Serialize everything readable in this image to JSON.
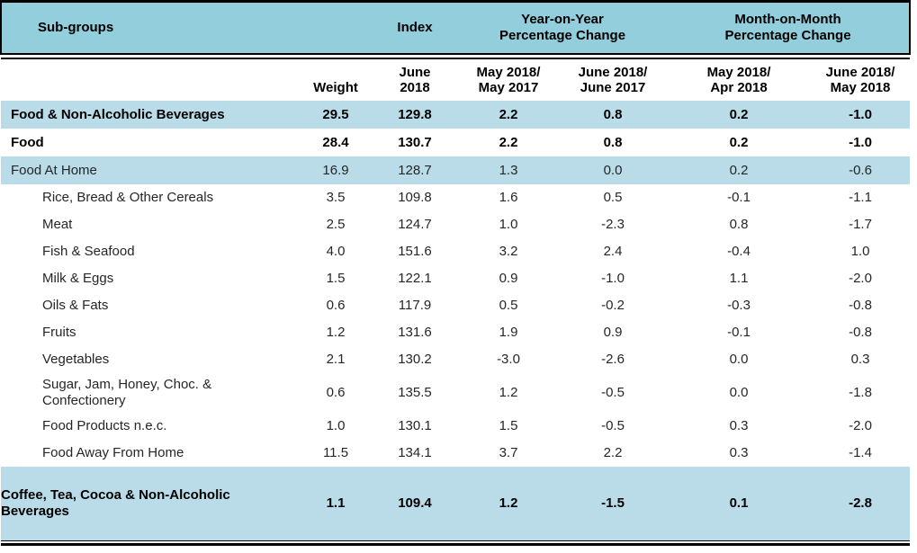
{
  "table": {
    "header": {
      "subgroups": "Sub-groups",
      "index": "Index",
      "yoy_group": "Year-on-Year\nPercentage Change",
      "mom_group": "Month-on-Month\nPercentage Change",
      "weight": "Weight",
      "index_period": "June\n2018",
      "yoy_col1": "May 2018/\nMay 2017",
      "yoy_col2": "June 2018/\nJune 2017",
      "mom_col1": "May 2018/\nApr 2018",
      "mom_col2": "June 2018/\nMay 2018"
    },
    "colors": {
      "header_band": "#92CEDC",
      "row_highlight": "#B9DCE8",
      "rule": "#000000"
    },
    "rows": [
      {
        "label": "Food & Non-Alcoholic Beverages",
        "weight": "29.5",
        "index": "129.8",
        "yoy1": "2.2",
        "yoy2": "0.8",
        "mom1": "0.2",
        "mom2": "-1.0",
        "level": 0,
        "bold": true,
        "highlight": true
      },
      {
        "label": "Food",
        "weight": "28.4",
        "index": "130.7",
        "yoy1": "2.2",
        "yoy2": "0.8",
        "mom1": "0.2",
        "mom2": "-1.0",
        "level": 0,
        "bold": true,
        "highlight": false
      },
      {
        "label": "Food At Home",
        "weight": "16.9",
        "index": "128.7",
        "yoy1": "1.3",
        "yoy2": "0.0",
        "mom1": "0.2",
        "mom2": "-0.6",
        "level": 0,
        "bold": false,
        "highlight": true
      },
      {
        "label": "Rice, Bread & Other Cereals",
        "weight": "3.5",
        "index": "109.8",
        "yoy1": "1.6",
        "yoy2": "0.5",
        "mom1": "-0.1",
        "mom2": "-1.1",
        "level": 1,
        "bold": false,
        "highlight": false
      },
      {
        "label": "Meat",
        "weight": "2.5",
        "index": "124.7",
        "yoy1": "1.0",
        "yoy2": "-2.3",
        "mom1": "0.8",
        "mom2": "-1.7",
        "level": 1,
        "bold": false,
        "highlight": false
      },
      {
        "label": "Fish & Seafood",
        "weight": "4.0",
        "index": "151.6",
        "yoy1": "3.2",
        "yoy2": "2.4",
        "mom1": "-0.4",
        "mom2": "1.0",
        "level": 1,
        "bold": false,
        "highlight": false
      },
      {
        "label": "Milk & Eggs",
        "weight": "1.5",
        "index": "122.1",
        "yoy1": "0.9",
        "yoy2": "-1.0",
        "mom1": "1.1",
        "mom2": "-2.0",
        "level": 1,
        "bold": false,
        "highlight": false
      },
      {
        "label": "Oils & Fats",
        "weight": "0.6",
        "index": "117.9",
        "yoy1": "0.5",
        "yoy2": "-0.2",
        "mom1": "-0.3",
        "mom2": "-0.8",
        "level": 1,
        "bold": false,
        "highlight": false
      },
      {
        "label": "Fruits",
        "weight": "1.2",
        "index": "131.6",
        "yoy1": "1.9",
        "yoy2": "0.9",
        "mom1": "-0.1",
        "mom2": "-0.8",
        "level": 1,
        "bold": false,
        "highlight": false
      },
      {
        "label": "Vegetables",
        "weight": "2.1",
        "index": "130.2",
        "yoy1": "-3.0",
        "yoy2": "-2.6",
        "mom1": "0.0",
        "mom2": "0.3",
        "level": 1,
        "bold": false,
        "highlight": false
      },
      {
        "label": "Sugar, Jam, Honey, Choc. &\nConfectionery",
        "weight": "0.6",
        "index": "135.5",
        "yoy1": "1.2",
        "yoy2": "-0.5",
        "mom1": "0.0",
        "mom2": "-1.8",
        "level": 1,
        "bold": false,
        "highlight": false
      },
      {
        "label": "Food Products n.e.c.",
        "weight": "1.0",
        "index": "130.1",
        "yoy1": "1.5",
        "yoy2": "-0.5",
        "mom1": "0.3",
        "mom2": "-2.0",
        "level": 1,
        "bold": false,
        "highlight": false
      },
      {
        "label": "Food Away From Home",
        "weight": "11.5",
        "index": "134.1",
        "yoy1": "3.7",
        "yoy2": "2.2",
        "mom1": "0.3",
        "mom2": "-1.4",
        "level": 1,
        "bold": false,
        "highlight": false
      },
      {
        "label": "Coffee, Tea, Cocoa & Non-Alcoholic\nBeverages",
        "weight": "1.1",
        "index": "109.4",
        "yoy1": "1.2",
        "yoy2": "-1.5",
        "mom1": "0.1",
        "mom2": "-2.8",
        "level": 0,
        "bold": true,
        "highlight": true
      }
    ]
  }
}
